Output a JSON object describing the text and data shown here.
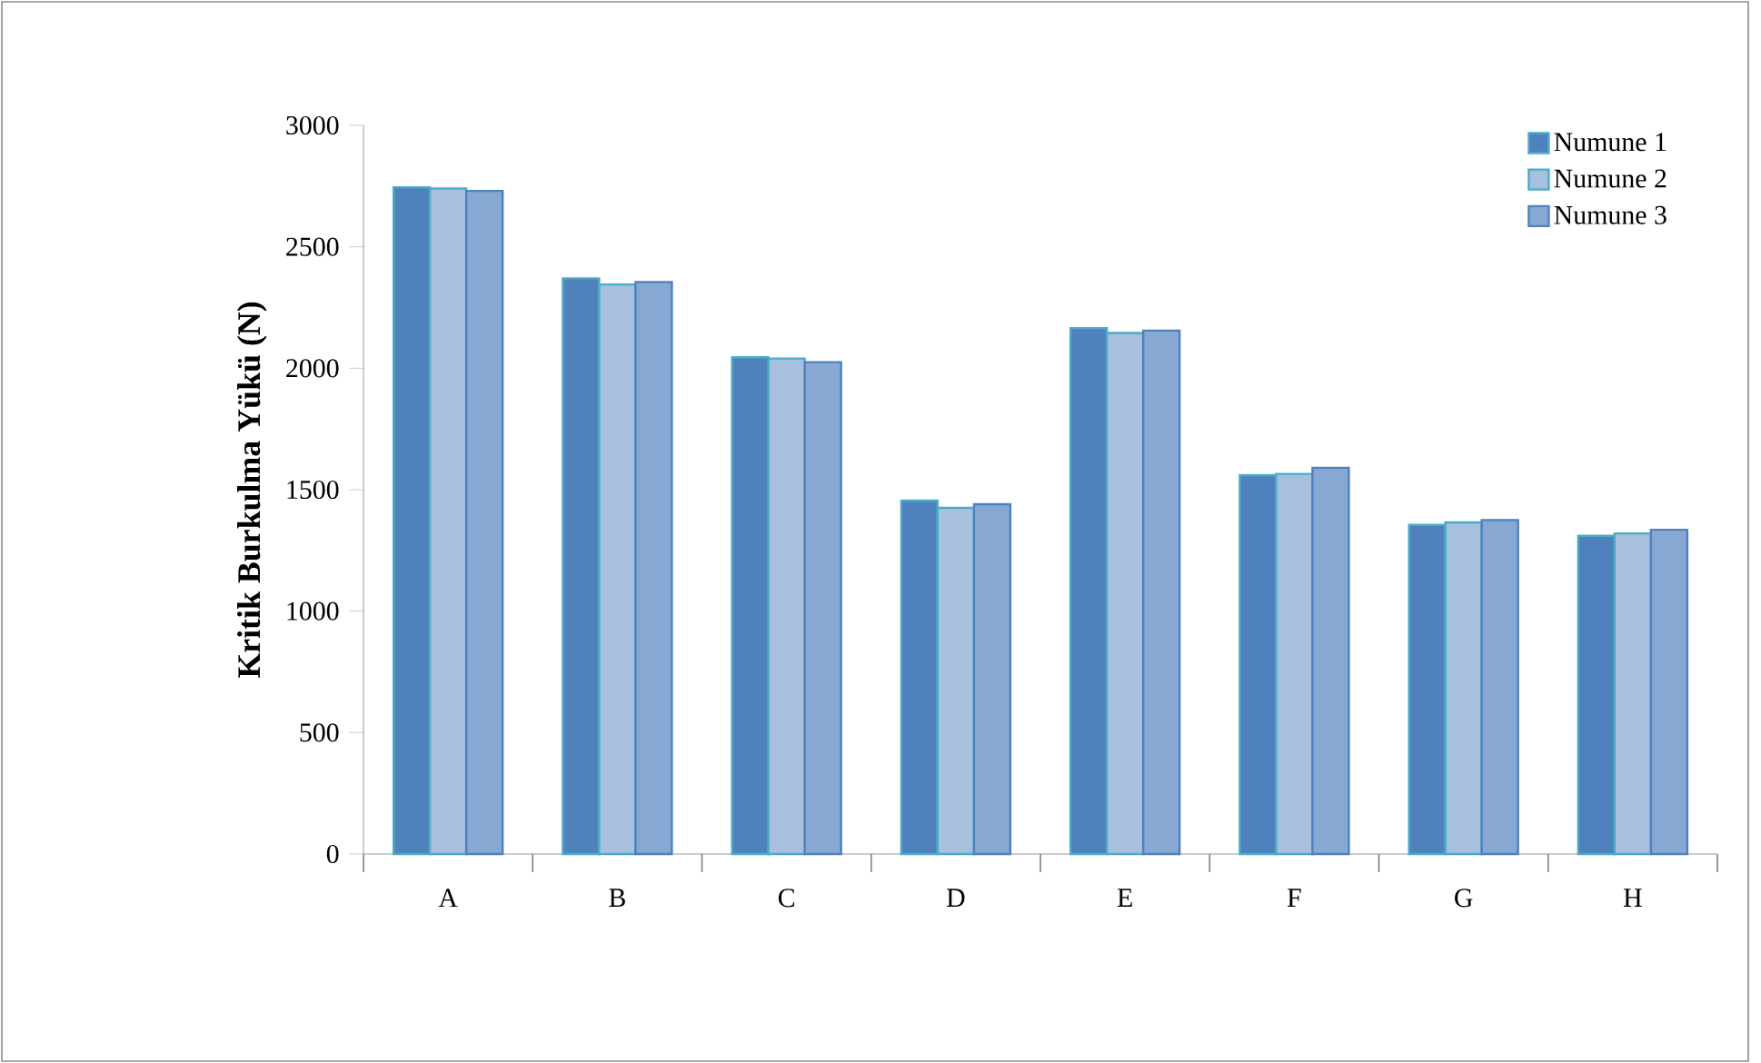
{
  "chart_data": {
    "type": "bar",
    "ylabel": "Kritik Burkulma Yükü (N)",
    "categories": [
      "A",
      "B",
      "C",
      "D",
      "E",
      "F",
      "G",
      "H"
    ],
    "series": [
      {
        "name": "Numune 1",
        "color": "#4f81bd",
        "values": [
          2745,
          2370,
          2045,
          1455,
          2165,
          1560,
          1355,
          1310
        ]
      },
      {
        "name": "Numune 2",
        "color": "#a7c0de",
        "values": [
          2740,
          2345,
          2040,
          1425,
          2145,
          1565,
          1365,
          1320
        ]
      },
      {
        "name": "Numune 3",
        "color": "#86a8d3",
        "values": [
          2730,
          2355,
          2025,
          1440,
          2155,
          1590,
          1375,
          1335
        ]
      }
    ],
    "ylim": [
      0,
      3000
    ],
    "yticks": [
      0,
      500,
      1000,
      1500,
      2000,
      2500,
      3000
    ],
    "legend": "top right"
  }
}
